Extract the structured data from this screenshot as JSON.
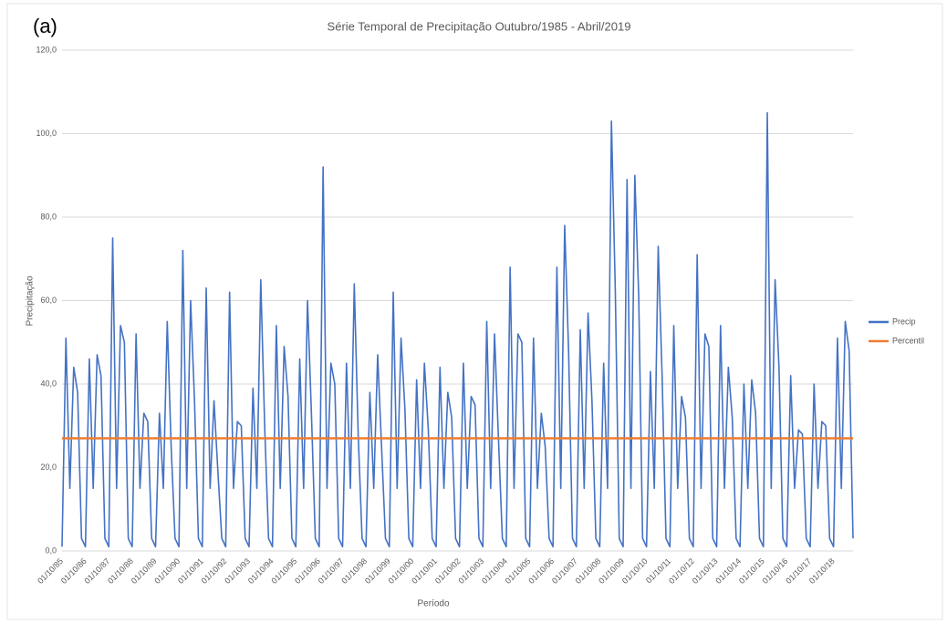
{
  "panel_label": "(a)",
  "chart_data": {
    "type": "line",
    "title": "Série Temporal de Precipitação Outubro/1985 - Abril/2019",
    "x_label": "Período",
    "y_label": "Precipitação",
    "legend": "right",
    "grid": true,
    "ylim": [
      0,
      120
    ],
    "yticks": [
      {
        "value": 0,
        "label": "0,0"
      },
      {
        "value": 20,
        "label": "20,0"
      },
      {
        "value": 40,
        "label": "40,0"
      },
      {
        "value": 60,
        "label": "60,0"
      },
      {
        "value": 80,
        "label": "80,0"
      },
      {
        "value": 100,
        "label": "100,0"
      },
      {
        "value": 120,
        "label": "120,0"
      }
    ],
    "categories": [
      "01/10/85",
      null,
      null,
      null,
      null,
      null,
      "01/10/86",
      null,
      null,
      null,
      null,
      null,
      "01/10/87",
      null,
      null,
      null,
      null,
      null,
      "01/10/88",
      null,
      null,
      null,
      null,
      null,
      "01/10/89",
      null,
      null,
      null,
      null,
      null,
      "01/10/90",
      null,
      null,
      null,
      null,
      null,
      "01/10/91",
      null,
      null,
      null,
      null,
      null,
      "01/10/92",
      null,
      null,
      null,
      null,
      null,
      "01/10/93",
      null,
      null,
      null,
      null,
      null,
      "01/10/94",
      null,
      null,
      null,
      null,
      null,
      "01/10/95",
      null,
      null,
      null,
      null,
      null,
      "01/10/96",
      null,
      null,
      null,
      null,
      null,
      "01/10/97",
      null,
      null,
      null,
      null,
      null,
      "01/10/98",
      null,
      null,
      null,
      null,
      null,
      "01/10/99",
      null,
      null,
      null,
      null,
      null,
      "01/10/00",
      null,
      null,
      null,
      null,
      null,
      "01/10/01",
      null,
      null,
      null,
      null,
      null,
      "01/10/02",
      null,
      null,
      null,
      null,
      null,
      "01/10/03",
      null,
      null,
      null,
      null,
      null,
      "01/10/04",
      null,
      null,
      null,
      null,
      null,
      "01/10/05",
      null,
      null,
      null,
      null,
      null,
      "01/10/06",
      null,
      null,
      null,
      null,
      null,
      "01/10/07",
      null,
      null,
      null,
      null,
      null,
      "01/10/08",
      null,
      null,
      null,
      null,
      null,
      "01/10/09",
      null,
      null,
      null,
      null,
      null,
      "01/10/10",
      null,
      null,
      null,
      null,
      null,
      "01/10/11",
      null,
      null,
      null,
      null,
      null,
      "01/10/12",
      null,
      null,
      null,
      null,
      null,
      "01/10/13",
      null,
      null,
      null,
      null,
      null,
      "01/10/14",
      null,
      null,
      null,
      null,
      null,
      "01/10/15",
      null,
      null,
      null,
      null,
      null,
      "01/10/16",
      null,
      null,
      null,
      null,
      null,
      "01/10/17",
      null,
      null,
      null,
      null,
      null,
      "01/10/18",
      null,
      null,
      null,
      null,
      null
    ],
    "series": [
      {
        "name": "Precip",
        "color": "#4472c4",
        "values": [
          1,
          51,
          15,
          44,
          38,
          3,
          1,
          46,
          15,
          47,
          42,
          3,
          1,
          75,
          15,
          54,
          50,
          3,
          1,
          52,
          15,
          33,
          31,
          3,
          1,
          33,
          15,
          55,
          25,
          3,
          1,
          72,
          15,
          60,
          36,
          3,
          1,
          63,
          15,
          36,
          19,
          3,
          1,
          62,
          15,
          31,
          30,
          3,
          1,
          39,
          15,
          65,
          30,
          3,
          1,
          54,
          15,
          49,
          37,
          3,
          1,
          46,
          15,
          60,
          33,
          3,
          1,
          92,
          15,
          45,
          40,
          3,
          1,
          45,
          15,
          64,
          28,
          3,
          1,
          38,
          15,
          47,
          25,
          3,
          1,
          62,
          15,
          51,
          34,
          3,
          1,
          41,
          15,
          45,
          29,
          3,
          1,
          44,
          15,
          38,
          32,
          3,
          1,
          45,
          15,
          37,
          35,
          3,
          1,
          55,
          15,
          52,
          27,
          3,
          1,
          68,
          15,
          52,
          50,
          3,
          1,
          51,
          15,
          33,
          25,
          3,
          1,
          68,
          15,
          78,
          48,
          3,
          1,
          53,
          15,
          57,
          36,
          3,
          1,
          45,
          15,
          103,
          62,
          3,
          1,
          89,
          15,
          90,
          61,
          3,
          1,
          43,
          15,
          73,
          42,
          3,
          1,
          54,
          15,
          37,
          32,
          3,
          1,
          71,
          15,
          52,
          49,
          3,
          1,
          54,
          15,
          44,
          32,
          3,
          1,
          40,
          15,
          41,
          33,
          3,
          1,
          105,
          15,
          65,
          44,
          3,
          1,
          42,
          15,
          29,
          28,
          3,
          1,
          40,
          15,
          31,
          30,
          3,
          1,
          51,
          15,
          55,
          48,
          3
        ]
      },
      {
        "name": "Percentil",
        "color": "#ed7d31",
        "values": [
          27,
          27,
          27,
          27,
          27,
          27,
          27,
          27,
          27,
          27,
          27,
          27,
          27,
          27,
          27,
          27,
          27,
          27,
          27,
          27,
          27,
          27,
          27,
          27,
          27,
          27,
          27,
          27,
          27,
          27,
          27,
          27,
          27,
          27,
          27,
          27,
          27,
          27,
          27,
          27,
          27,
          27,
          27,
          27,
          27,
          27,
          27,
          27,
          27,
          27,
          27,
          27,
          27,
          27,
          27,
          27,
          27,
          27,
          27,
          27,
          27,
          27,
          27,
          27,
          27,
          27,
          27,
          27,
          27,
          27,
          27,
          27,
          27,
          27,
          27,
          27,
          27,
          27,
          27,
          27,
          27,
          27,
          27,
          27,
          27,
          27,
          27,
          27,
          27,
          27,
          27,
          27,
          27,
          27,
          27,
          27,
          27,
          27,
          27,
          27,
          27,
          27,
          27,
          27,
          27,
          27,
          27,
          27,
          27,
          27,
          27,
          27,
          27,
          27,
          27,
          27,
          27,
          27,
          27,
          27,
          27,
          27,
          27,
          27,
          27,
          27,
          27,
          27,
          27,
          27,
          27,
          27,
          27,
          27,
          27,
          27,
          27,
          27,
          27,
          27,
          27,
          27,
          27,
          27,
          27,
          27,
          27,
          27,
          27,
          27,
          27,
          27,
          27,
          27,
          27,
          27,
          27,
          27,
          27,
          27,
          27,
          27,
          27,
          27,
          27,
          27,
          27,
          27,
          27,
          27,
          27,
          27,
          27,
          27,
          27,
          27,
          27,
          27,
          27,
          27,
          27,
          27,
          27,
          27,
          27,
          27,
          27,
          27,
          27,
          27,
          27,
          27,
          27,
          27,
          27,
          27,
          27,
          27,
          27,
          27,
          27,
          27,
          27,
          27
        ]
      }
    ]
  }
}
